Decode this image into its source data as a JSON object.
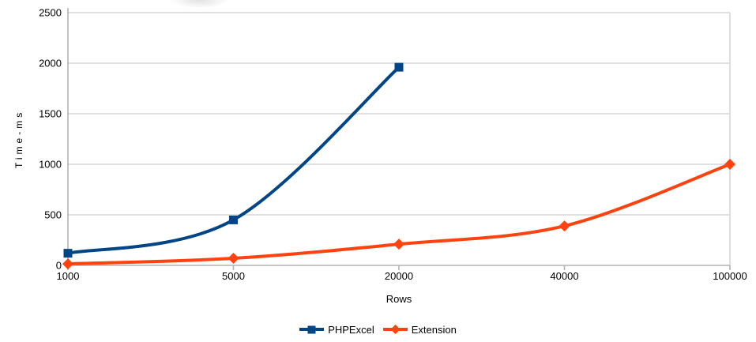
{
  "chart_data": {
    "type": "line",
    "title": "",
    "xlabel": "Rows",
    "ylabel": "Time-ms",
    "categories": [
      "1000",
      "5000",
      "20000",
      "40000",
      "100000"
    ],
    "y_ticks": [
      0,
      500,
      1000,
      1500,
      2000,
      2500
    ],
    "ylim": [
      0,
      2500
    ],
    "grid": true,
    "line_smoothing": true,
    "legend_position": "bottom",
    "series": [
      {
        "name": "PHPExcel",
        "color": "#004586",
        "marker": "square",
        "values": [
          120,
          450,
          1960,
          null,
          null
        ]
      },
      {
        "name": "Extension",
        "color": "#FF420E",
        "marker": "diamond",
        "values": [
          15,
          70,
          210,
          390,
          1000
        ]
      }
    ],
    "colors": {
      "grid": "#d6d6d6",
      "axis": "#b3b3b3",
      "text": "#000000",
      "background": "#ffffff"
    }
  }
}
